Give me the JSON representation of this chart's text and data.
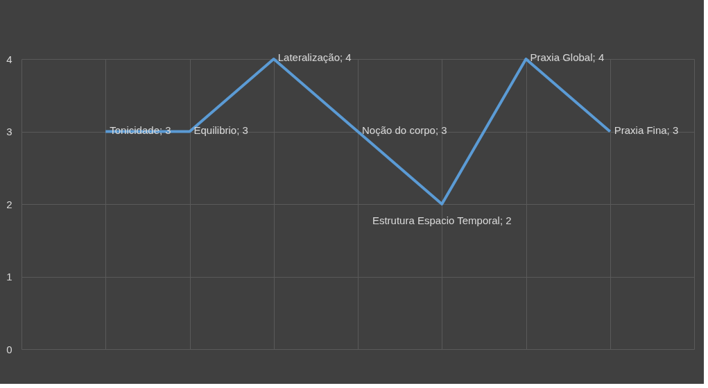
{
  "chart_data": {
    "type": "line",
    "categories": [
      null,
      null,
      null,
      null,
      null,
      null,
      null,
      null,
      null
    ],
    "series": [
      {
        "color": "#5b9bd5",
        "values": [
          null,
          3,
          3,
          4,
          3,
          2,
          4,
          3,
          null
        ]
      }
    ],
    "value_labels": [
      null,
      "Tonicidade; 3",
      "Equilibrio; 3",
      "Lateralização; 4",
      "Noção do corpo; 3",
      "Estrutura Espacio Temporal; 2",
      "Praxia Global; 4",
      "Praxia Fina; 3",
      null
    ],
    "ylim": [
      0,
      4
    ],
    "yticks": [
      0,
      1,
      2,
      3,
      4
    ],
    "grid": true,
    "tick_labels": "y",
    "marker": "none",
    "line_style": "solid"
  }
}
